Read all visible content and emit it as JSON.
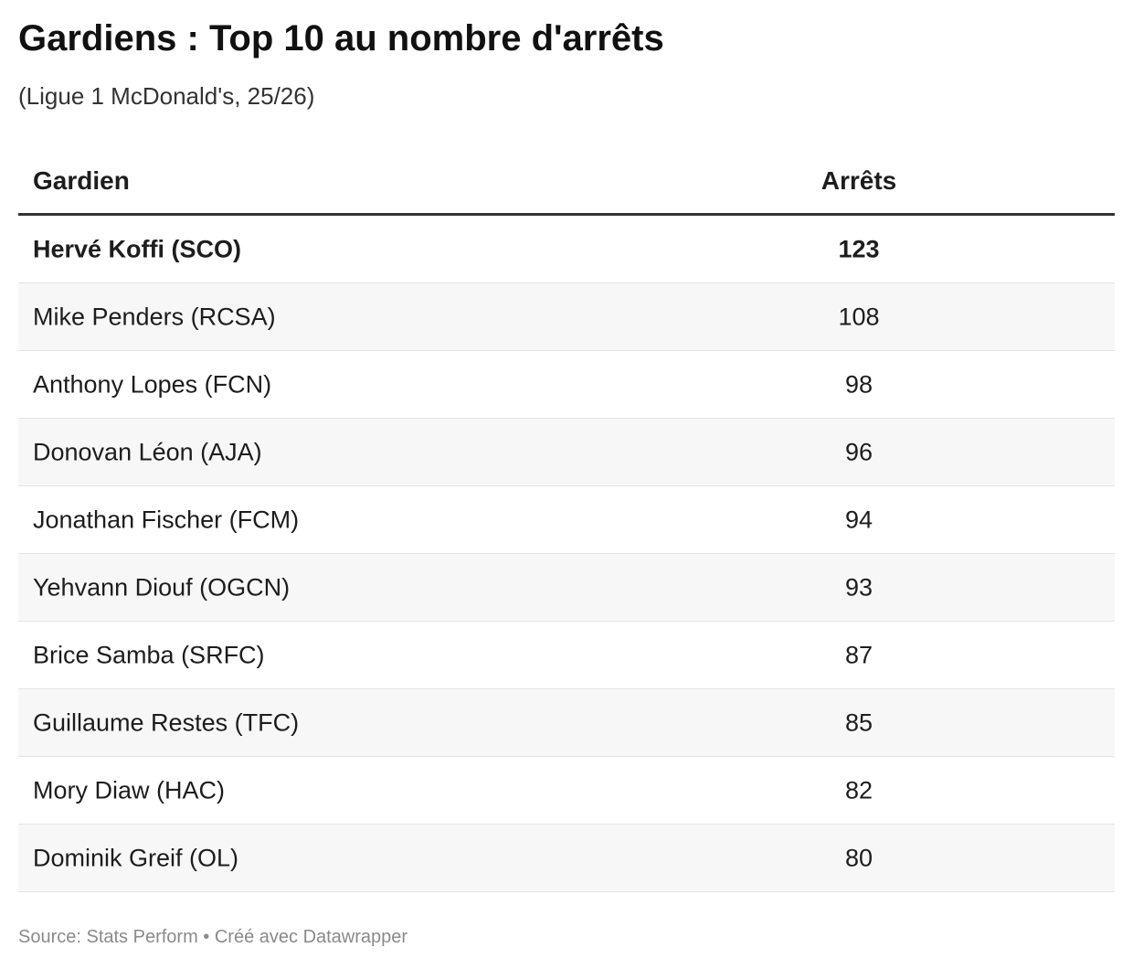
{
  "header": {
    "title": "Gardiens : Top 10 au nombre d'arrêts",
    "subtitle": "(Ligue 1 McDonald's, 25/26)"
  },
  "table": {
    "columns": [
      "Gardien",
      "Arrêts"
    ],
    "rows": [
      [
        "Hervé Koffi (SCO)",
        123
      ],
      [
        "Mike Penders (RCSA)",
        108
      ],
      [
        "Anthony Lopes (FCN)",
        98
      ],
      [
        "Donovan Léon (AJA)",
        96
      ],
      [
        "Jonathan Fischer (FCM)",
        94
      ],
      [
        "Yehvann Diouf (OGCN)",
        93
      ],
      [
        "Brice Samba (SRFC)",
        87
      ],
      [
        "Guillaume Restes (TFC)",
        85
      ],
      [
        "Mory Diaw (HAC)",
        82
      ],
      [
        "Dominik Greif (OL)",
        80
      ]
    ]
  },
  "footer": {
    "source": "Source: Stats Perform • Créé avec Datawrapper"
  }
}
